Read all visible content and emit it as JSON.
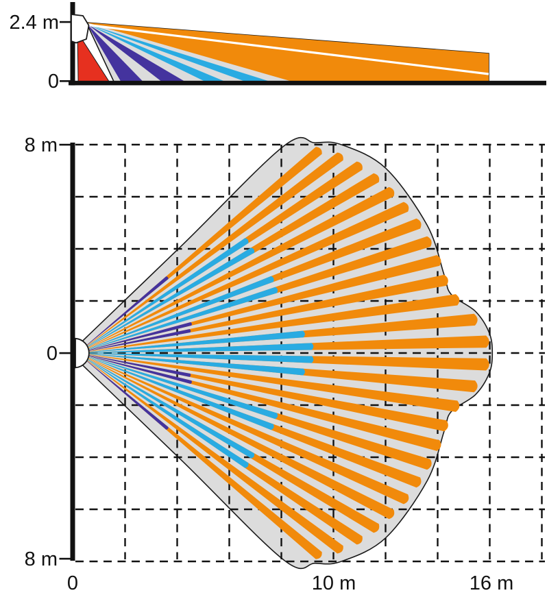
{
  "palette": {
    "orange": "#F18A0B",
    "cyan": "#29ABE2",
    "indigo": "#44339E",
    "red": "#E6301F",
    "zone_fill": "#DCDCDC",
    "outline": "#1a1a1a",
    "axis": "#111111",
    "background": "#ffffff"
  },
  "side_view": {
    "y_axis_labels": {
      "top": "2.4 m",
      "bottom": "0"
    },
    "mounting_height_m": 2.4,
    "max_range_m": 16,
    "beams": [
      {
        "zone": "creep",
        "color": "red",
        "floor_from_m": 0.2,
        "floor_to_m": 1.42
      },
      {
        "zone": "short",
        "color": "indigo",
        "floor_from_m": 1.87,
        "floor_to_m": 2.74
      },
      {
        "zone": "short",
        "color": "indigo",
        "floor_from_m": 3.47,
        "floor_to_m": 4.39
      },
      {
        "zone": "mid",
        "color": "cyan",
        "floor_from_m": 5.18,
        "floor_to_m": 5.97
      },
      {
        "zone": "mid",
        "color": "cyan",
        "floor_from_m": 6.76,
        "floor_to_m": 7.74
      },
      {
        "zone": "long",
        "color": "orange",
        "floor_from_m": 8.6,
        "floor_to_m": 16
      }
    ]
  },
  "top_view": {
    "y_axis_labels": {
      "top": "8 m",
      "center": "0",
      "bottom": "8 m"
    },
    "x_axis_labels": [
      {
        "value_m": 0,
        "label": "0"
      },
      {
        "value_m": 10,
        "label": "10 m"
      },
      {
        "value_m": 16,
        "label": "16 m"
      }
    ],
    "grid_step_m": 2,
    "half_width_m": 8,
    "max_range_m": 16,
    "boundary_upper_half_m": [
      [
        0.3,
        0.4
      ],
      [
        4.2,
        4.15
      ],
      [
        8.1,
        7.95
      ],
      [
        9.3,
        8.07
      ],
      [
        10.3,
        8.0
      ],
      [
        12.0,
        7.1
      ],
      [
        13.6,
        4.9
      ],
      [
        14.25,
        3.0
      ],
      [
        14.52,
        2.25
      ],
      [
        15.45,
        1.6
      ],
      [
        15.98,
        0.78
      ],
      [
        16.1,
        0.0
      ]
    ],
    "rays": [
      {
        "angle_deg": 1.6,
        "indigo_end_m": null,
        "cyan_end_m": 9.0,
        "orange_end_m": 15.7
      },
      {
        "angle_deg": -1.6,
        "indigo_end_m": null,
        "cyan_end_m": 9.0,
        "orange_end_m": 15.7
      },
      {
        "angle_deg": 4.8,
        "indigo_end_m": null,
        "cyan_end_m": 8.7,
        "orange_end_m": 15.3
      },
      {
        "angle_deg": -4.8,
        "indigo_end_m": null,
        "cyan_end_m": 8.7,
        "orange_end_m": 15.3
      },
      {
        "angle_deg": 8.0,
        "indigo_end_m": null,
        "cyan_end_m": null,
        "orange_end_m": 14.7
      },
      {
        "angle_deg": -8.0,
        "indigo_end_m": null,
        "cyan_end_m": null,
        "orange_end_m": 14.7
      },
      {
        "angle_deg": 11.2,
        "indigo_end_m": 4.4,
        "cyan_end_m": null,
        "orange_end_m": 14.4
      },
      {
        "angle_deg": -11.2,
        "indigo_end_m": 4.4,
        "cyan_end_m": null,
        "orange_end_m": 14.4
      },
      {
        "angle_deg": 14.4,
        "indigo_end_m": 4.5,
        "cyan_end_m": null,
        "orange_end_m": 14.3
      },
      {
        "angle_deg": -14.4,
        "indigo_end_m": 4.5,
        "cyan_end_m": null,
        "orange_end_m": 14.3
      },
      {
        "angle_deg": 17.6,
        "indigo_end_m": null,
        "cyan_end_m": 8.0,
        "orange_end_m": 14.15
      },
      {
        "angle_deg": -17.6,
        "indigo_end_m": null,
        "cyan_end_m": 8.0,
        "orange_end_m": 14.15
      },
      {
        "angle_deg": 20.8,
        "indigo_end_m": null,
        "cyan_end_m": 8.0,
        "orange_end_m": 14.0
      },
      {
        "angle_deg": -20.8,
        "indigo_end_m": null,
        "cyan_end_m": 8.0,
        "orange_end_m": 14.0
      },
      {
        "angle_deg": 24.0,
        "indigo_end_m": null,
        "cyan_end_m": null,
        "orange_end_m": 13.8
      },
      {
        "angle_deg": -24.0,
        "indigo_end_m": null,
        "cyan_end_m": null,
        "orange_end_m": 13.8
      },
      {
        "angle_deg": 27.2,
        "indigo_end_m": null,
        "cyan_end_m": null,
        "orange_end_m": 13.55
      },
      {
        "angle_deg": -27.2,
        "indigo_end_m": null,
        "cyan_end_m": null,
        "orange_end_m": 13.55
      },
      {
        "angle_deg": 30.4,
        "indigo_end_m": null,
        "cyan_end_m": 7.8,
        "orange_end_m": 13.3
      },
      {
        "angle_deg": -30.4,
        "indigo_end_m": null,
        "cyan_end_m": 7.8,
        "orange_end_m": 13.3
      },
      {
        "angle_deg": 33.6,
        "indigo_end_m": null,
        "cyan_end_m": 7.8,
        "orange_end_m": 13.0
      },
      {
        "angle_deg": -33.6,
        "indigo_end_m": null,
        "cyan_end_m": 7.8,
        "orange_end_m": 13.0
      },
      {
        "angle_deg": 36.8,
        "indigo_end_m": null,
        "cyan_end_m": null,
        "orange_end_m": 12.6
      },
      {
        "angle_deg": -36.8,
        "indigo_end_m": null,
        "cyan_end_m": null,
        "orange_end_m": 12.6
      },
      {
        "angle_deg": 40.0,
        "indigo_end_m": 4.5,
        "cyan_end_m": null,
        "orange_end_m": 12.1
      },
      {
        "angle_deg": -40.0,
        "indigo_end_m": 4.5,
        "cyan_end_m": null,
        "orange_end_m": 12.1
      }
    ]
  }
}
